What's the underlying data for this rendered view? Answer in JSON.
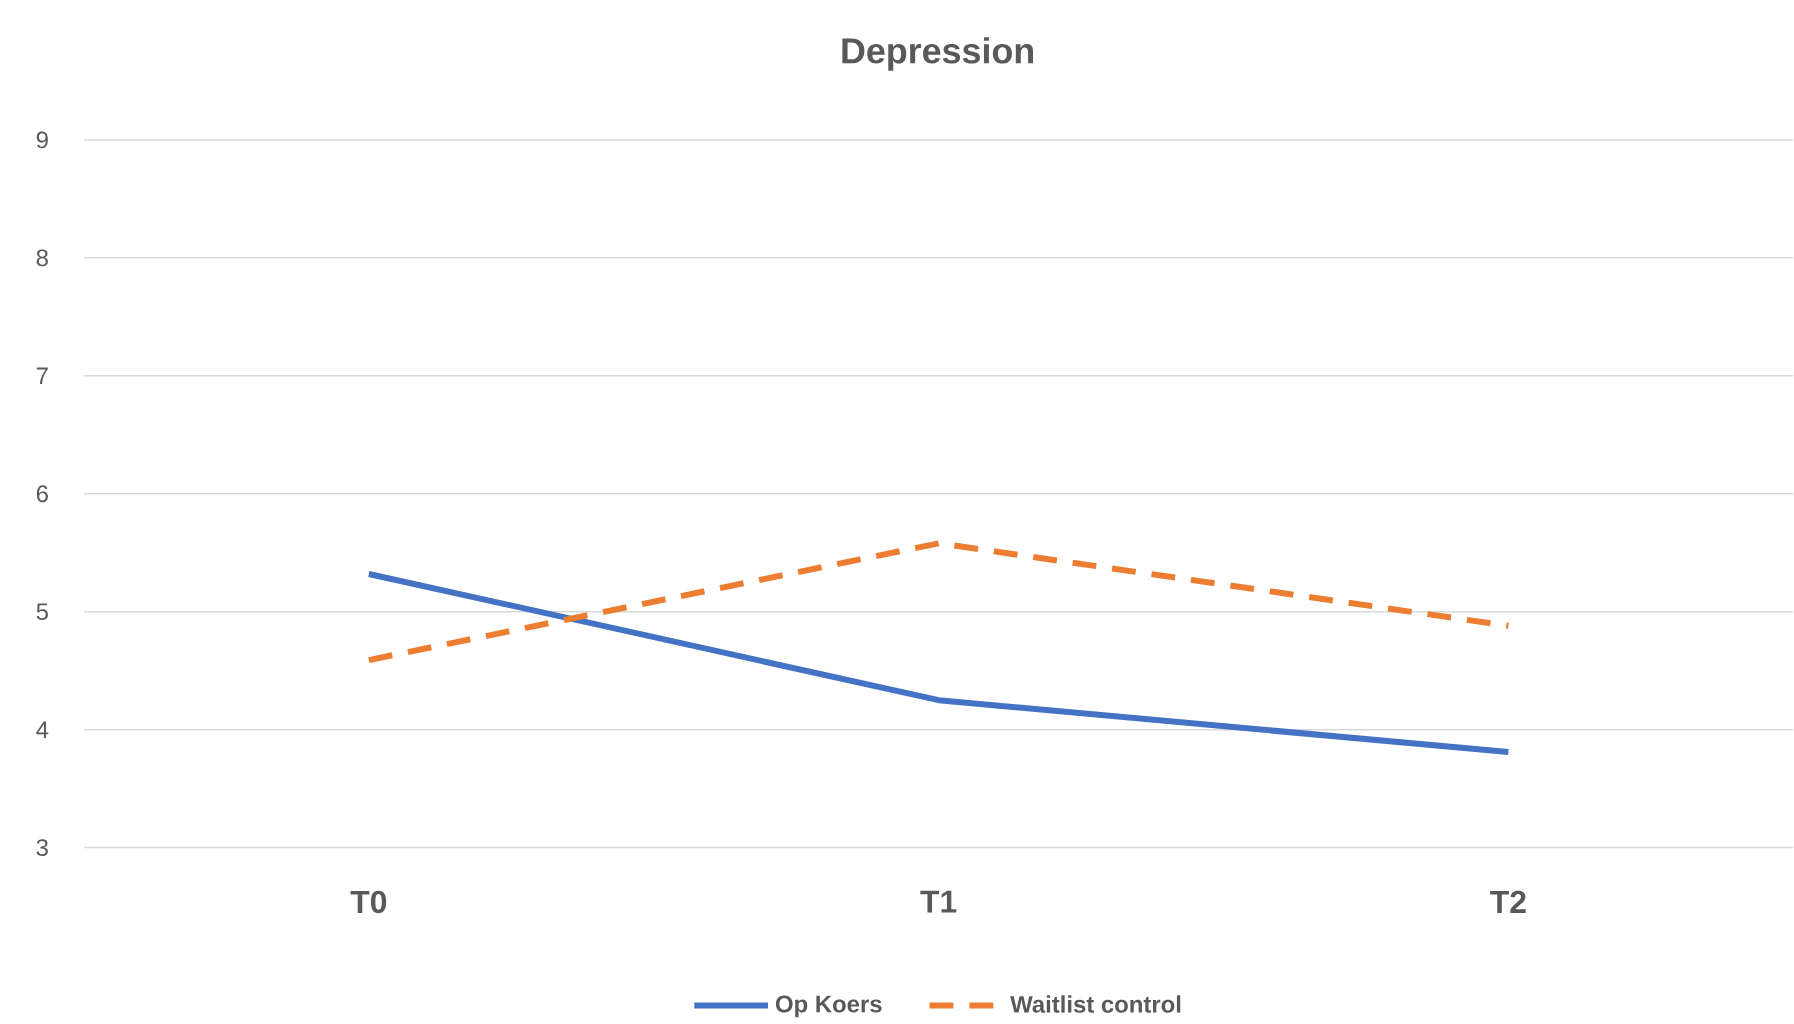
{
  "chart_data": {
    "type": "line",
    "title": "Depression",
    "categories": [
      "T0",
      "T1",
      "T2"
    ],
    "series": [
      {
        "name": "Op Koers",
        "color": "#4472c4",
        "line_style": "solid",
        "values": [
          5.32,
          4.25,
          3.81
        ]
      },
      {
        "name": "Waitlist control",
        "color": "#ed7d31",
        "line_style": "dashed",
        "values": [
          4.59,
          5.58,
          4.88
        ]
      }
    ],
    "ylim": [
      3,
      9
    ],
    "yticks": [
      3,
      4,
      5,
      6,
      7,
      8,
      9
    ],
    "grid": "y",
    "legend": "bottom",
    "marker": "none"
  }
}
